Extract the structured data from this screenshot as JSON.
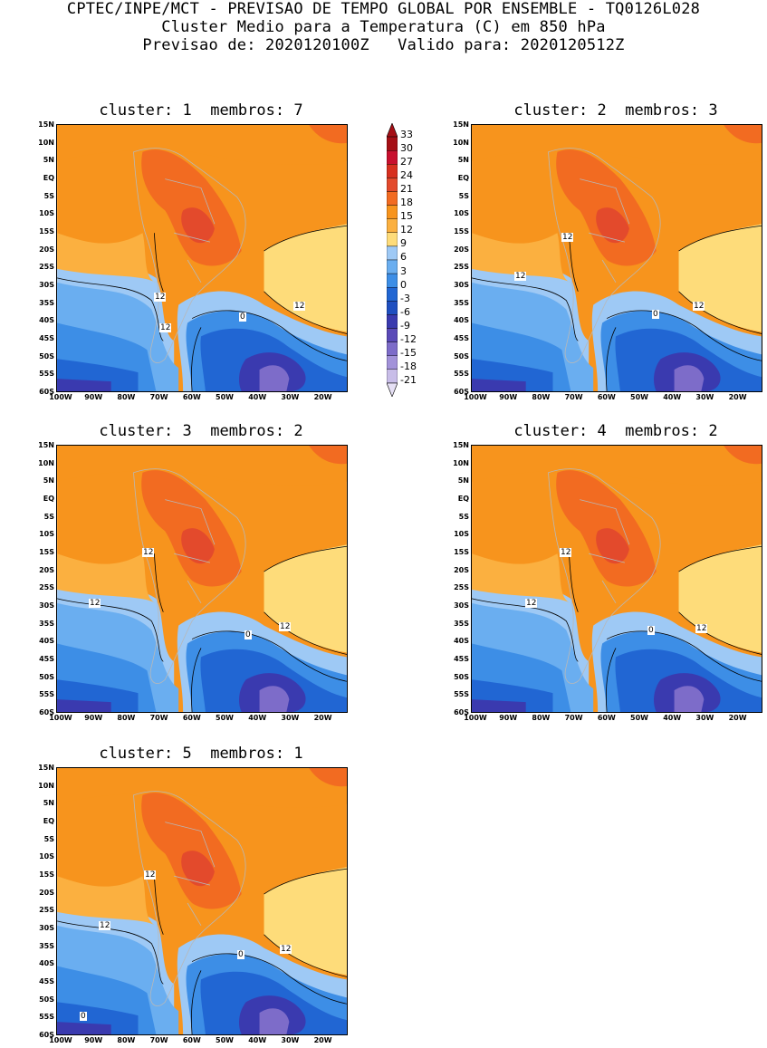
{
  "header": {
    "line1": "CPTEC/INPE/MCT - PREVISAO DE TEMPO GLOBAL POR ENSEMBLE - TQ0126L028",
    "line2": "Cluster Medio para a Temperatura (C) em 850 hPa",
    "line3": "Previsao de: 2020120100Z   Valido para: 2020120512Z"
  },
  "panels": [
    {
      "title": "cluster: 1  membros: 7"
    },
    {
      "title": "cluster: 2  membros: 3"
    },
    {
      "title": "cluster: 3  membros: 2"
    },
    {
      "title": "cluster: 4  membros: 2"
    },
    {
      "title": "cluster: 5  membros: 1"
    }
  ],
  "lat_labels": [
    "15N",
    "10N",
    "5N",
    "EQ",
    "5S",
    "10S",
    "15S",
    "20S",
    "25S",
    "30S",
    "35S",
    "40S",
    "45S",
    "50S",
    "55S",
    "60S"
  ],
  "lon_labels": [
    "100W",
    "90W",
    "80W",
    "70W",
    "60W",
    "50W",
    "40W",
    "30W",
    "20W"
  ],
  "contour_labels": {
    "p1": [
      "12",
      "12",
      "12",
      "0"
    ],
    "p2": [
      "12",
      "12",
      "12",
      "0"
    ],
    "p3": [
      "12",
      "12",
      "12",
      "0"
    ],
    "p4": [
      "12",
      "12",
      "12",
      "0"
    ],
    "p5": [
      "12",
      "12",
      "12",
      "0",
      "0"
    ]
  },
  "colorbar": {
    "labels": [
      "33",
      "30",
      "27",
      "24",
      "21",
      "18",
      "15",
      "12",
      "9",
      "6",
      "3",
      "0",
      "-3",
      "-6",
      "-9",
      "-12",
      "-15",
      "-18",
      "-21"
    ],
    "colors": [
      "#a50f15",
      "#c8102e",
      "#d7301f",
      "#e34a2c",
      "#f26b21",
      "#f7941d",
      "#fbb040",
      "#fedc7a",
      "#9ec9f5",
      "#6aaef0",
      "#3d8ee6",
      "#2166d3",
      "#1f4fc0",
      "#3a3aaf",
      "#5a4ab8",
      "#7d6cc9",
      "#a292d9",
      "#c8bde8",
      "#e6e0f5"
    ]
  }
}
